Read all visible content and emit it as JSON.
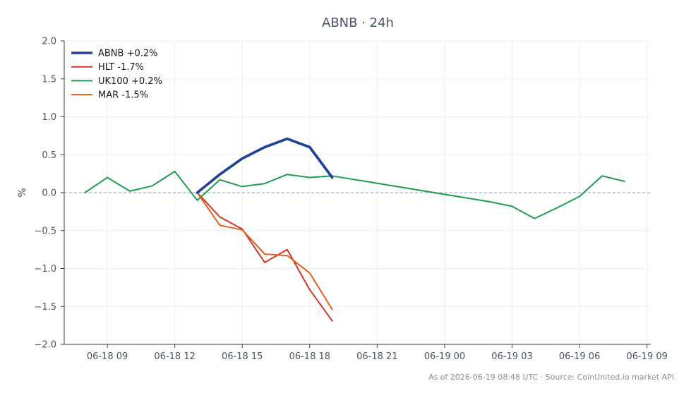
{
  "chart_data": {
    "type": "line",
    "title": "ABNB · 24h",
    "xlabel": "",
    "ylabel": "%",
    "x_ticks": [
      "06-18 09",
      "06-18 12",
      "06-18 15",
      "06-18 18",
      "06-18 21",
      "06-19 00",
      "06-19 03",
      "06-19 06",
      "06-19 09"
    ],
    "xlim": [
      "06-18 07:05",
      "06-19 09:10"
    ],
    "ylim": [
      -2.0,
      2.0
    ],
    "y_ticks": [
      "2.0",
      "1.5",
      "1.0",
      "0.5",
      "0.0",
      "−0.5",
      "−1.0",
      "−1.5",
      "−2.0"
    ],
    "grid": true,
    "legend": "top-left",
    "baseline": 0.0,
    "series": [
      {
        "name": "ABNB +0.2%",
        "color": "#1f3f99",
        "x": [
          "06-18 13:00",
          "06-18 14:00",
          "06-18 15:00",
          "06-18 16:00",
          "06-18 17:00",
          "06-18 18:00",
          "06-18 19:00"
        ],
        "values": [
          0.0,
          0.24,
          0.45,
          0.6,
          0.71,
          0.6,
          0.2
        ]
      },
      {
        "name": "HLT -1.7%",
        "color": "#d23328",
        "x": [
          "06-18 13:00",
          "06-18 14:00",
          "06-18 15:00",
          "06-18 16:00",
          "06-18 17:00",
          "06-18 18:00",
          "06-18 19:00"
        ],
        "values": [
          0.0,
          -0.32,
          -0.48,
          -0.92,
          -0.75,
          -1.28,
          -1.69
        ]
      },
      {
        "name": "UK100 +0.2%",
        "color": "#1e9e4a",
        "x": [
          "06-18 08:00",
          "06-18 09:00",
          "06-18 10:00",
          "06-18 11:00",
          "06-18 12:00",
          "06-18 13:00",
          "06-18 14:00",
          "06-18 15:00",
          "06-18 16:00",
          "06-18 17:00",
          "06-18 18:00",
          "06-18 19:00",
          "06-19 02:00",
          "06-19 03:00",
          "06-19 04:00",
          "06-19 05:00",
          "06-19 06:00",
          "06-19 07:00",
          "06-19 08:00"
        ],
        "values": [
          0.0,
          0.2,
          0.02,
          0.09,
          0.28,
          -0.1,
          0.17,
          0.08,
          0.12,
          0.24,
          0.2,
          0.22,
          -0.12,
          -0.18,
          -0.34,
          -0.2,
          -0.05,
          0.22,
          0.15
        ]
      },
      {
        "name": "MAR -1.5%",
        "color": "#e05f1a",
        "x": [
          "06-18 13:00",
          "06-18 14:00",
          "06-18 15:00",
          "06-18 16:00",
          "06-18 17:00",
          "06-18 18:00",
          "06-18 19:00"
        ],
        "values": [
          0.0,
          -0.43,
          -0.49,
          -0.81,
          -0.83,
          -1.06,
          -1.54
        ]
      }
    ],
    "footer": "As of 2026-06-19 08:48 UTC · Source: CoinUnited.io market API"
  }
}
